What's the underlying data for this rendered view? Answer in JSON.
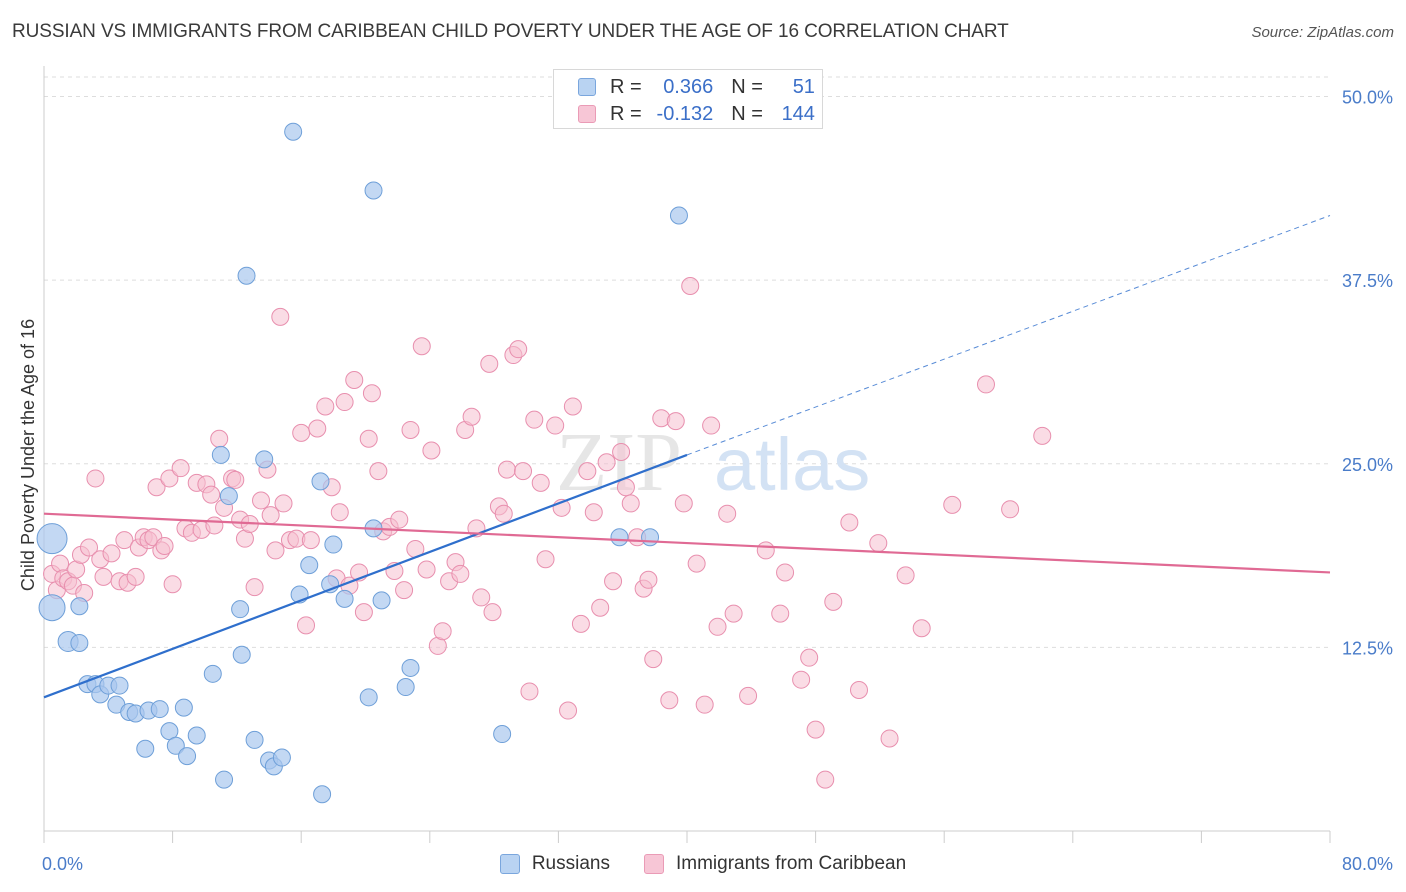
{
  "title": "RUSSIAN VS IMMIGRANTS FROM CARIBBEAN CHILD POVERTY UNDER THE AGE OF 16 CORRELATION CHART",
  "source": "Source: ZipAtlas.com",
  "watermark": {
    "zip": "ZIP",
    "atlas": "atlas"
  },
  "legend": {
    "rows": [
      {
        "r_label": "R =",
        "r_value": "0.366",
        "n_label": "N =",
        "n_value": "51"
      },
      {
        "r_label": "R =",
        "r_value": "-0.132",
        "n_label": "N =",
        "n_value": "144"
      }
    ]
  },
  "bottom_legend": {
    "russians": "Russians",
    "caribbean": "Immigrants from Caribbean"
  },
  "colors": {
    "blue_fill": "#a9c8ee",
    "blue_stroke": "#6e9fd8",
    "blue_line": "#2f6fcc",
    "pink_fill": "#f5bfd0",
    "pink_stroke": "#e88fae",
    "pink_line": "#e06a94",
    "tick_text": "#4a7cc9",
    "grid": "#dddddd"
  },
  "chart_data": {
    "type": "scatter",
    "ylabel": "Child Poverty Under the Age of 16",
    "xlim": [
      0,
      80
    ],
    "ylim": [
      0,
      52
    ],
    "x_tick_labels": [
      "0.0%",
      "80.0%"
    ],
    "y_ticks": [
      12.5,
      25.0,
      37.5,
      50.0
    ],
    "y_tick_labels": [
      "12.5%",
      "25.0%",
      "37.5%",
      "50.0%"
    ],
    "grid": "horizontal dashed",
    "series": [
      {
        "name": "Russians",
        "trend": {
          "x": [
            0,
            40
          ],
          "y": [
            9.1,
            25.6
          ],
          "dashed_to": [
            80,
            41.9
          ]
        },
        "points": [
          [
            15.5,
            47.6
          ],
          [
            20.5,
            43.6
          ],
          [
            39.5,
            41.9
          ],
          [
            12.6,
            37.8
          ],
          [
            0.5,
            19.9
          ],
          [
            0.5,
            15.2
          ],
          [
            1.5,
            12.9
          ],
          [
            2.2,
            12.8
          ],
          [
            2.2,
            15.3
          ],
          [
            2.7,
            10.0
          ],
          [
            3.2,
            10.0
          ],
          [
            3.5,
            9.3
          ],
          [
            4.0,
            9.9
          ],
          [
            4.7,
            9.9
          ],
          [
            4.5,
            8.6
          ],
          [
            5.3,
            8.1
          ],
          [
            5.7,
            8.0
          ],
          [
            6.5,
            8.2
          ],
          [
            7.2,
            8.3
          ],
          [
            8.7,
            8.4
          ],
          [
            6.3,
            5.6
          ],
          [
            7.8,
            6.8
          ],
          [
            8.2,
            5.8
          ],
          [
            8.9,
            5.1
          ],
          [
            9.5,
            6.5
          ],
          [
            10.5,
            10.7
          ],
          [
            11.2,
            3.5
          ],
          [
            11.5,
            22.8
          ],
          [
            11.0,
            25.6
          ],
          [
            12.2,
            15.1
          ],
          [
            12.3,
            12.0
          ],
          [
            13.1,
            6.2
          ],
          [
            13.7,
            25.3
          ],
          [
            14.0,
            4.8
          ],
          [
            14.3,
            4.4
          ],
          [
            14.8,
            5.0
          ],
          [
            15.9,
            16.1
          ],
          [
            16.5,
            18.1
          ],
          [
            17.2,
            23.8
          ],
          [
            17.3,
            2.5
          ],
          [
            17.8,
            16.8
          ],
          [
            18.0,
            19.5
          ],
          [
            18.7,
            15.8
          ],
          [
            20.2,
            9.1
          ],
          [
            20.5,
            20.6
          ],
          [
            21.0,
            15.7
          ],
          [
            22.5,
            9.8
          ],
          [
            22.8,
            11.1
          ],
          [
            28.5,
            6.6
          ],
          [
            35.8,
            20.0
          ],
          [
            37.7,
            20.0
          ]
        ]
      },
      {
        "name": "Immigrants from Caribbean",
        "trend": {
          "x": [
            0,
            80
          ],
          "y": [
            21.6,
            17.6
          ]
        },
        "points": [
          [
            0.5,
            17.5
          ],
          [
            0.8,
            16.4
          ],
          [
            1.0,
            18.2
          ],
          [
            1.2,
            17.2
          ],
          [
            1.5,
            17.0
          ],
          [
            1.8,
            16.7
          ],
          [
            2.0,
            17.8
          ],
          [
            2.3,
            18.8
          ],
          [
            2.5,
            16.2
          ],
          [
            2.8,
            19.3
          ],
          [
            3.2,
            24.0
          ],
          [
            3.5,
            18.5
          ],
          [
            3.7,
            17.3
          ],
          [
            4.2,
            18.9
          ],
          [
            4.7,
            17.0
          ],
          [
            5.0,
            19.8
          ],
          [
            5.2,
            16.9
          ],
          [
            5.7,
            17.3
          ],
          [
            5.9,
            19.3
          ],
          [
            6.2,
            20.0
          ],
          [
            6.5,
            19.8
          ],
          [
            6.8,
            20.0
          ],
          [
            7.0,
            23.4
          ],
          [
            7.3,
            19.1
          ],
          [
            7.5,
            19.4
          ],
          [
            7.8,
            24.0
          ],
          [
            8.0,
            16.8
          ],
          [
            8.5,
            24.7
          ],
          [
            8.8,
            20.6
          ],
          [
            9.2,
            20.3
          ],
          [
            9.5,
            23.7
          ],
          [
            9.8,
            20.5
          ],
          [
            10.1,
            23.6
          ],
          [
            10.4,
            22.9
          ],
          [
            10.6,
            20.8
          ],
          [
            10.9,
            26.7
          ],
          [
            11.2,
            22.0
          ],
          [
            11.7,
            24.0
          ],
          [
            11.9,
            23.9
          ],
          [
            12.2,
            21.2
          ],
          [
            12.5,
            19.9
          ],
          [
            12.8,
            20.9
          ],
          [
            13.1,
            16.6
          ],
          [
            13.5,
            22.5
          ],
          [
            13.9,
            24.6
          ],
          [
            14.1,
            21.5
          ],
          [
            14.4,
            19.1
          ],
          [
            14.7,
            35.0
          ],
          [
            14.9,
            22.3
          ],
          [
            15.3,
            19.8
          ],
          [
            15.7,
            19.9
          ],
          [
            16.0,
            27.1
          ],
          [
            16.3,
            14.0
          ],
          [
            16.6,
            19.8
          ],
          [
            17.0,
            27.4
          ],
          [
            17.5,
            28.9
          ],
          [
            17.9,
            23.4
          ],
          [
            18.2,
            17.2
          ],
          [
            18.4,
            21.7
          ],
          [
            18.7,
            29.2
          ],
          [
            19.0,
            16.7
          ],
          [
            19.3,
            30.7
          ],
          [
            19.6,
            17.6
          ],
          [
            19.9,
            14.9
          ],
          [
            20.2,
            26.7
          ],
          [
            20.4,
            29.8
          ],
          [
            20.8,
            24.5
          ],
          [
            21.1,
            20.4
          ],
          [
            21.5,
            20.7
          ],
          [
            21.8,
            17.7
          ],
          [
            22.1,
            21.2
          ],
          [
            22.4,
            16.4
          ],
          [
            22.8,
            27.3
          ],
          [
            23.1,
            19.2
          ],
          [
            23.5,
            33.0
          ],
          [
            23.8,
            17.8
          ],
          [
            24.1,
            25.9
          ],
          [
            24.5,
            12.6
          ],
          [
            24.8,
            13.6
          ],
          [
            25.2,
            17.0
          ],
          [
            25.6,
            18.3
          ],
          [
            25.9,
            17.5
          ],
          [
            26.2,
            27.3
          ],
          [
            26.6,
            28.2
          ],
          [
            26.9,
            20.6
          ],
          [
            27.2,
            15.9
          ],
          [
            27.7,
            31.8
          ],
          [
            27.9,
            14.9
          ],
          [
            28.3,
            22.1
          ],
          [
            28.6,
            21.6
          ],
          [
            28.8,
            24.6
          ],
          [
            29.2,
            32.4
          ],
          [
            29.5,
            32.8
          ],
          [
            29.8,
            24.5
          ],
          [
            30.2,
            9.5
          ],
          [
            30.5,
            28.0
          ],
          [
            30.9,
            23.7
          ],
          [
            31.2,
            18.5
          ],
          [
            31.8,
            27.6
          ],
          [
            32.2,
            22.0
          ],
          [
            32.6,
            8.2
          ],
          [
            32.9,
            28.9
          ],
          [
            33.4,
            14.1
          ],
          [
            33.8,
            24.5
          ],
          [
            34.2,
            21.7
          ],
          [
            34.6,
            15.2
          ],
          [
            35.0,
            25.1
          ],
          [
            35.4,
            17.0
          ],
          [
            35.9,
            25.8
          ],
          [
            36.2,
            23.4
          ],
          [
            36.5,
            22.3
          ],
          [
            36.9,
            20.0
          ],
          [
            37.3,
            16.5
          ],
          [
            37.6,
            17.1
          ],
          [
            37.9,
            11.7
          ],
          [
            38.4,
            28.1
          ],
          [
            38.9,
            8.9
          ],
          [
            39.3,
            27.9
          ],
          [
            39.8,
            22.3
          ],
          [
            40.2,
            37.1
          ],
          [
            40.6,
            18.2
          ],
          [
            41.1,
            8.6
          ],
          [
            41.5,
            27.6
          ],
          [
            41.9,
            13.9
          ],
          [
            42.5,
            21.6
          ],
          [
            42.9,
            14.8
          ],
          [
            43.8,
            9.2
          ],
          [
            44.9,
            19.1
          ],
          [
            45.8,
            14.8
          ],
          [
            46.1,
            17.6
          ],
          [
            47.1,
            10.3
          ],
          [
            47.6,
            11.8
          ],
          [
            48.0,
            6.9
          ],
          [
            48.6,
            3.5
          ],
          [
            49.1,
            15.6
          ],
          [
            50.1,
            21.0
          ],
          [
            50.7,
            9.6
          ],
          [
            51.9,
            19.6
          ],
          [
            52.6,
            6.3
          ],
          [
            53.6,
            17.4
          ],
          [
            54.6,
            13.8
          ],
          [
            56.5,
            22.2
          ],
          [
            58.6,
            30.4
          ],
          [
            60.1,
            21.9
          ],
          [
            62.1,
            26.9
          ]
        ]
      }
    ]
  }
}
